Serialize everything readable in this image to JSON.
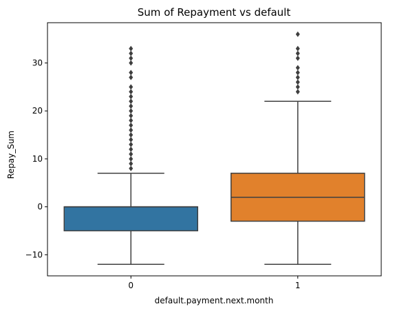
{
  "chart_data": {
    "type": "box",
    "title": "Sum of Repayment vs default",
    "xlabel": "default.payment.next.month",
    "ylabel": "Repay_Sum",
    "categories": [
      "0",
      "1"
    ],
    "ylim": [
      -14.4,
      38.4
    ],
    "yticks": [
      -10,
      0,
      10,
      20,
      30
    ],
    "grid": false,
    "boxes": [
      {
        "category": "0",
        "color": "#3274a1",
        "whisker_low": -12,
        "q1": -5,
        "median": 0,
        "q3": 0,
        "whisker_high": 7,
        "outliers": [
          8,
          9,
          10,
          11,
          12,
          13,
          14,
          15,
          16,
          17,
          18,
          19,
          20,
          21,
          22,
          23,
          24,
          25,
          27,
          28,
          30,
          31,
          32,
          33
        ]
      },
      {
        "category": "1",
        "color": "#e1812c",
        "whisker_low": -12,
        "q1": -3,
        "median": 2,
        "q3": 7,
        "whisker_high": 22,
        "outliers": [
          24,
          25,
          26,
          27,
          28,
          29,
          31,
          32,
          33,
          36
        ]
      }
    ],
    "colors": {
      "line": "#3f3f3f",
      "axis": "#000000"
    }
  }
}
